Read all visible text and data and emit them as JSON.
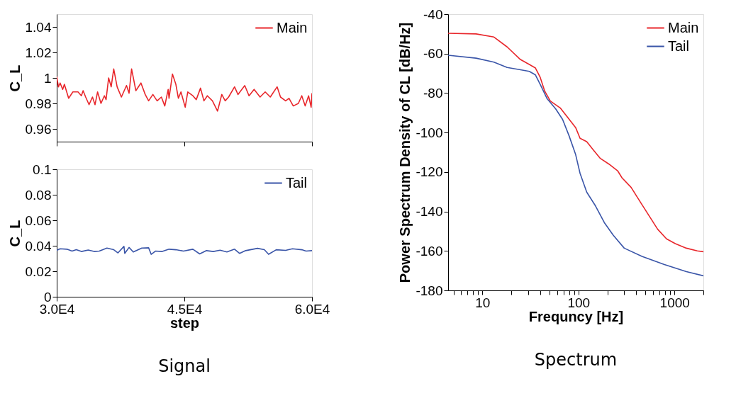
{
  "chart_data": [
    {
      "type": "line",
      "ylabel": "C_L",
      "xlim": [
        30000,
        60000
      ],
      "xticks": [
        {
          "value": 30000,
          "label": null
        },
        {
          "value": 45000,
          "label": null
        },
        {
          "value": 60000,
          "label": null
        }
      ],
      "ylim": [
        0.95,
        1.05
      ],
      "yticks": [
        0.96,
        0.98,
        1,
        1.02,
        1.04
      ],
      "tick_labels": "y",
      "grid": false,
      "legend": "top right",
      "marker": "none",
      "line_style": "solid",
      "x": [
        30000,
        30200,
        30400,
        30700,
        30900,
        31400,
        31900,
        32500,
        32900,
        33100,
        33400,
        33800,
        34200,
        34500,
        34800,
        35200,
        35600,
        35800,
        36100,
        36400,
        36700,
        37100,
        37600,
        38200,
        38500,
        38800,
        39300,
        39900,
        40400,
        40800,
        41300,
        41800,
        42300,
        42700,
        43100,
        43200,
        43600,
        44000,
        44300,
        44600,
        45100,
        45400,
        46000,
        46400,
        46900,
        47300,
        47700,
        48300,
        48900,
        49400,
        49800,
        50200,
        50900,
        51300,
        52100,
        52600,
        53200,
        53900,
        54500,
        55100,
        55900,
        56300,
        56900,
        57300,
        57800,
        58400,
        58800,
        59200,
        59600,
        59900,
        60000
      ],
      "series": [
        {
          "name": "Main",
          "color": "#e8262b",
          "values": [
            1.001,
            0.993,
            0.996,
            0.991,
            0.995,
            0.984,
            0.989,
            0.989,
            0.986,
            0.99,
            0.985,
            0.979,
            0.985,
            0.979,
            0.989,
            0.98,
            0.986,
            0.983,
            1.0,
            0.993,
            1.007,
            0.993,
            0.985,
            0.994,
            0.988,
            1.007,
            0.99,
            0.996,
            0.987,
            0.982,
            0.987,
            0.982,
            0.985,
            0.978,
            0.991,
            0.984,
            1.003,
            0.995,
            0.984,
            0.989,
            0.977,
            0.989,
            0.986,
            0.983,
            0.992,
            0.982,
            0.986,
            0.982,
            0.974,
            0.987,
            0.982,
            0.985,
            0.993,
            0.987,
            0.994,
            0.986,
            0.991,
            0.985,
            0.989,
            0.985,
            0.993,
            0.985,
            0.982,
            0.984,
            0.978,
            0.98,
            0.986,
            0.978,
            0.986,
            0.977,
            0.988
          ]
        }
      ]
    },
    {
      "type": "line",
      "xlabel": "step",
      "ylabel": "C_L",
      "xlim": [
        30000,
        60000
      ],
      "xticks": [
        {
          "value": 30000,
          "label": "3.0E4"
        },
        {
          "value": 45000,
          "label": "4.5E4"
        },
        {
          "value": 60000,
          "label": "6.0E4"
        }
      ],
      "ylim": [
        0,
        0.1
      ],
      "yticks": [
        0,
        0.02,
        0.04,
        0.06,
        0.08,
        0.1
      ],
      "grid": false,
      "legend": "top right",
      "marker": "none",
      "line_style": "solid",
      "annotations": [
        "Signal"
      ],
      "x": [
        30000,
        30400,
        31200,
        31800,
        32300,
        32900,
        33700,
        34400,
        35000,
        35900,
        36700,
        37200,
        37900,
        38000,
        38500,
        39000,
        40000,
        40800,
        41100,
        41600,
        42400,
        43200,
        44000,
        44900,
        46000,
        46800,
        47600,
        48400,
        49200,
        50000,
        50900,
        51500,
        52200,
        53600,
        54400,
        54900,
        55800,
        56900,
        57700,
        58800,
        59300,
        60000
      ],
      "series": [
        {
          "name": "Tail",
          "color": "#3a55a8",
          "values": [
            0.0364,
            0.0376,
            0.0373,
            0.0358,
            0.0369,
            0.0355,
            0.0367,
            0.0355,
            0.0358,
            0.0382,
            0.0369,
            0.0344,
            0.0395,
            0.034,
            0.0387,
            0.0351,
            0.0382,
            0.0384,
            0.0333,
            0.0358,
            0.0355,
            0.0373,
            0.0369,
            0.0358,
            0.0373,
            0.0336,
            0.0362,
            0.0355,
            0.0365,
            0.0351,
            0.0373,
            0.034,
            0.0362,
            0.038,
            0.0369,
            0.0333,
            0.0369,
            0.0364,
            0.0376,
            0.0369,
            0.0358,
            0.0362
          ]
        }
      ]
    },
    {
      "type": "line",
      "xlabel": "Frequncy [Hz]",
      "ylabel": "Power Spectrum Density of CL [dB/Hz]",
      "log": "x",
      "xlim": [
        4.4,
        2000
      ],
      "xticks": [
        {
          "value": 5,
          "label": null
        },
        {
          "value": 6,
          "label": null
        },
        {
          "value": 7,
          "label": null
        },
        {
          "value": 8,
          "label": null
        },
        {
          "value": 9,
          "label": null
        },
        10,
        {
          "value": 20,
          "label": null
        },
        {
          "value": 30,
          "label": null
        },
        {
          "value": 40,
          "label": null
        },
        {
          "value": 50,
          "label": null
        },
        {
          "value": 60,
          "label": null
        },
        {
          "value": 70,
          "label": null
        },
        {
          "value": 80,
          "label": null
        },
        {
          "value": 90,
          "label": null
        },
        100,
        {
          "value": 200,
          "label": null
        },
        {
          "value": 300,
          "label": null
        },
        {
          "value": 400,
          "label": null
        },
        {
          "value": 500,
          "label": null
        },
        {
          "value": 600,
          "label": null
        },
        {
          "value": 700,
          "label": null
        },
        {
          "value": 800,
          "label": null
        },
        {
          "value": 900,
          "label": null
        },
        1000,
        {
          "value": 2000,
          "label": null
        }
      ],
      "ylim": [
        -180,
        -40
      ],
      "yticks": [
        -180,
        -160,
        -140,
        -120,
        -100,
        -80,
        -60,
        -40
      ],
      "grid": false,
      "legend": "top right",
      "marker": "none",
      "line_style": "solid",
      "annotations": [
        "Spectrum"
      ],
      "series": [
        {
          "name": "Main",
          "color": "#e8262b",
          "x": [
            4.4,
            8.6,
            13.2,
            18.1,
            24.9,
            30.8,
            35.7,
            40,
            44.6,
            51,
            64.6,
            84,
            93.6,
            104,
            122,
            143,
            168,
            208,
            257,
            285,
            354,
            437,
            541,
            668,
            827,
            1020,
            1330,
            1730,
            2000
          ],
          "values": [
            -49.7,
            -50,
            -51.6,
            -56.6,
            -63,
            -65.5,
            -67.3,
            -72,
            -79,
            -84,
            -87.5,
            -94.6,
            -97.5,
            -102.9,
            -104.6,
            -108.8,
            -113,
            -116,
            -119.5,
            -123,
            -127.8,
            -134.9,
            -142,
            -149,
            -153.9,
            -156.3,
            -158.6,
            -160,
            -160.4
          ]
        },
        {
          "name": "Tail",
          "color": "#3a55a8",
          "x": [
            4.4,
            8.6,
            13.2,
            18.1,
            24.9,
            30.8,
            35.7,
            40,
            47,
            58,
            68.5,
            80,
            93.6,
            104,
            122,
            151,
            186,
            231,
            300,
            459,
            785,
            1330,
            2000
          ],
          "values": [
            -60.8,
            -62.3,
            -64.3,
            -67,
            -68.2,
            -69,
            -70.8,
            -75.6,
            -82.7,
            -88,
            -93.4,
            -101.7,
            -111.2,
            -120.7,
            -130.2,
            -137.3,
            -145.6,
            -152.1,
            -158.6,
            -162.8,
            -166.9,
            -170.5,
            -172.6
          ]
        }
      ]
    }
  ]
}
